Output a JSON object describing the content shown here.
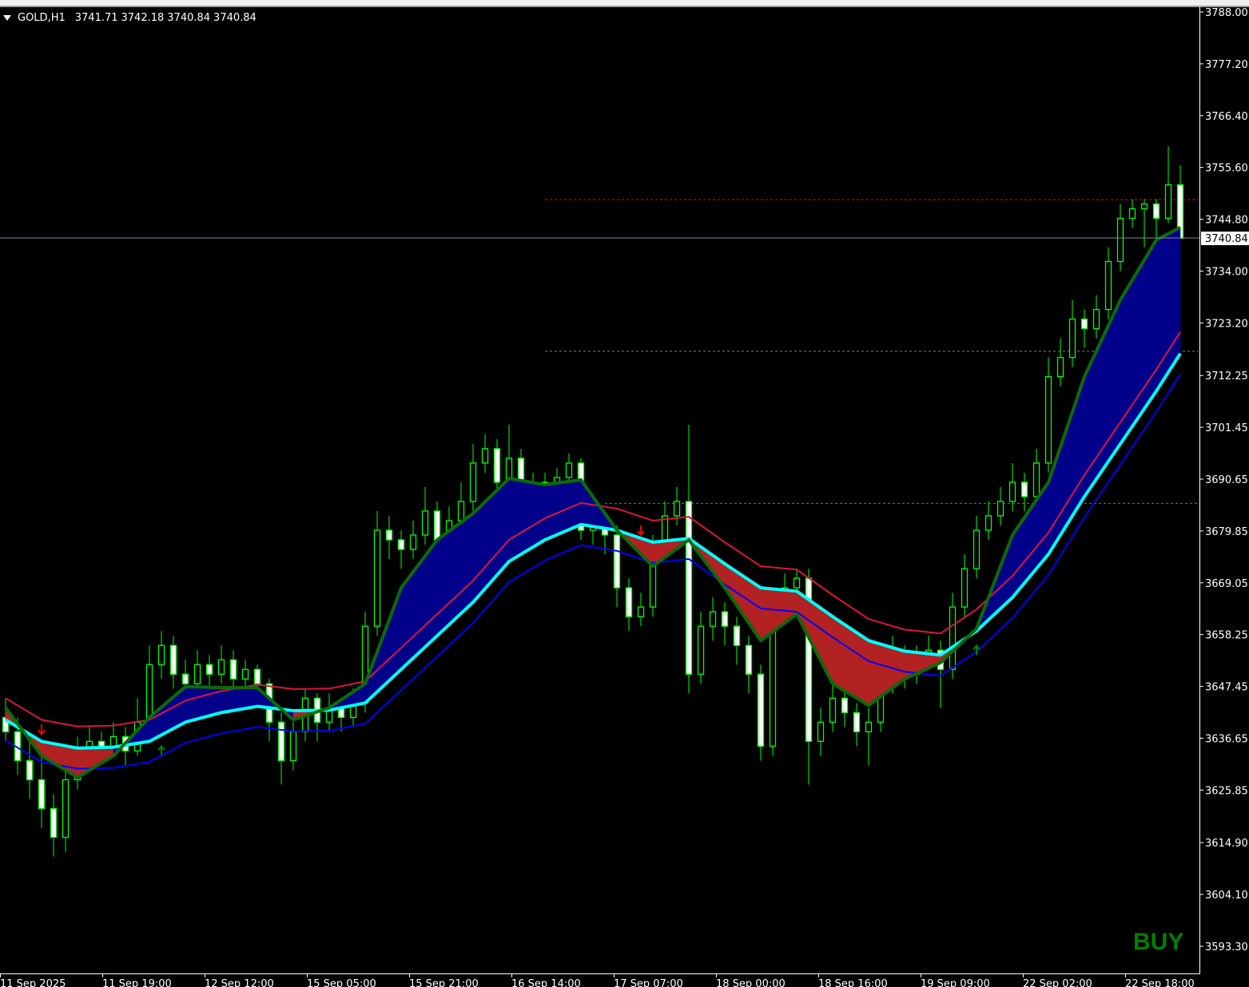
{
  "header": {
    "symbol": "GOLD,H1",
    "open": "3741.71",
    "high": "3742.18",
    "low": "3740.84",
    "close": "3740.84",
    "menu_icon": "triangle-down-icon"
  },
  "signal": {
    "label": "BUY",
    "color": "#008000"
  },
  "current_price_label": "3740.84",
  "colors": {
    "background": "#000000",
    "candle_outline": "#00ff00",
    "bull_body": "#000000",
    "bear_body": "#ffffff",
    "fast_line": "#0b6b0b",
    "mid_line": "#00ffff",
    "upper_band": "#dc143c",
    "lower_band": "#0000ff",
    "bull_fill": "#00008b",
    "bear_fill": "#b22222",
    "current_price_line": "#778899"
  },
  "chart_data": {
    "type": "candlestick",
    "title": "GOLD,H1",
    "ylim": [
      3593.3,
      3788.0
    ],
    "y_ticks": [
      "3788.00",
      "3777.20",
      "3766.40",
      "3755.60",
      "3744.80",
      "3734.00",
      "3723.20",
      "3712.25",
      "3701.45",
      "3690.65",
      "3679.85",
      "3669.05",
      "3658.25",
      "3647.45",
      "3636.65",
      "3625.85",
      "3614.90",
      "3604.10",
      "3593.30"
    ],
    "x_ticks": [
      "11 Sep 2025",
      "11 Sep 19:00",
      "12 Sep 12:00",
      "15 Sep 05:00",
      "15 Sep 21:00",
      "16 Sep 14:00",
      "17 Sep 07:00",
      "18 Sep 00:00",
      "18 Sep 16:00",
      "19 Sep 09:00",
      "22 Sep 02:00",
      "22 Sep 18:00"
    ],
    "grid": false,
    "candles_ohlc": [
      [
        3641,
        3645,
        3636,
        3638
      ],
      [
        3638,
        3641,
        3629,
        3632
      ],
      [
        3632,
        3636,
        3624,
        3628
      ],
      [
        3628,
        3633,
        3618,
        3622
      ],
      [
        3622,
        3625,
        3612,
        3616
      ],
      [
        3616,
        3631,
        3613,
        3628
      ],
      [
        3628,
        3637,
        3626,
        3634
      ],
      [
        3634,
        3639,
        3632,
        3636
      ],
      [
        3636,
        3638,
        3632,
        3635
      ],
      [
        3635,
        3640,
        3633,
        3637
      ],
      [
        3637,
        3639,
        3631,
        3634
      ],
      [
        3634,
        3645,
        3633,
        3640
      ],
      [
        3640,
        3656,
        3638,
        3652
      ],
      [
        3652,
        3659,
        3649,
        3656
      ],
      [
        3656,
        3658,
        3647,
        3650
      ],
      [
        3650,
        3653,
        3645,
        3648
      ],
      [
        3648,
        3655,
        3646,
        3652
      ],
      [
        3652,
        3654,
        3647,
        3650
      ],
      [
        3650,
        3656,
        3648,
        3653
      ],
      [
        3653,
        3655,
        3646,
        3649
      ],
      [
        3649,
        3653,
        3647,
        3651
      ],
      [
        3651,
        3652,
        3644,
        3648
      ],
      [
        3648,
        3649,
        3636,
        3640
      ],
      [
        3640,
        3642,
        3627,
        3632
      ],
      [
        3632,
        3640,
        3630,
        3638
      ],
      [
        3638,
        3647,
        3636,
        3645
      ],
      [
        3645,
        3646,
        3636,
        3640
      ],
      [
        3640,
        3646,
        3638,
        3643
      ],
      [
        3643,
        3645,
        3638,
        3641
      ],
      [
        3641,
        3647,
        3639,
        3644
      ],
      [
        3644,
        3663,
        3642,
        3660
      ],
      [
        3660,
        3684,
        3658,
        3680
      ],
      [
        3680,
        3683,
        3674,
        3678
      ],
      [
        3678,
        3680,
        3672,
        3676
      ],
      [
        3676,
        3682,
        3674,
        3679
      ],
      [
        3679,
        3689,
        3677,
        3684
      ],
      [
        3684,
        3686,
        3675,
        3678
      ],
      [
        3678,
        3685,
        3676,
        3682
      ],
      [
        3682,
        3690,
        3680,
        3686
      ],
      [
        3686,
        3698,
        3684,
        3694
      ],
      [
        3694,
        3700,
        3692,
        3697
      ],
      [
        3697,
        3699,
        3687,
        3690
      ],
      [
        3690,
        3702,
        3688,
        3695
      ],
      [
        3695,
        3697,
        3685,
        3688
      ],
      [
        3688,
        3692,
        3686,
        3690
      ],
      [
        3690,
        3692,
        3686,
        3688
      ],
      [
        3688,
        3693,
        3686,
        3691
      ],
      [
        3691,
        3696,
        3689,
        3694
      ],
      [
        3694,
        3695,
        3678,
        3680
      ],
      [
        3680,
        3683,
        3677,
        3681
      ],
      [
        3681,
        3683,
        3675,
        3679
      ],
      [
        3679,
        3681,
        3664,
        3668
      ],
      [
        3668,
        3670,
        3659,
        3662
      ],
      [
        3662,
        3667,
        3660,
        3664
      ],
      [
        3664,
        3679,
        3662,
        3676
      ],
      [
        3676,
        3686,
        3674,
        3683
      ],
      [
        3683,
        3689,
        3681,
        3686
      ],
      [
        3686,
        3702,
        3646,
        3650
      ],
      [
        3650,
        3663,
        3648,
        3660
      ],
      [
        3660,
        3666,
        3657,
        3663
      ],
      [
        3663,
        3665,
        3656,
        3660
      ],
      [
        3660,
        3662,
        3652,
        3656
      ],
      [
        3656,
        3658,
        3646,
        3650
      ],
      [
        3650,
        3652,
        3632,
        3635
      ],
      [
        3635,
        3667,
        3633,
        3664
      ],
      [
        3664,
        3671,
        3662,
        3668
      ],
      [
        3668,
        3672,
        3666,
        3670
      ],
      [
        3670,
        3672,
        3627,
        3636
      ],
      [
        3636,
        3643,
        3633,
        3640
      ],
      [
        3640,
        3648,
        3638,
        3645
      ],
      [
        3645,
        3647,
        3639,
        3642
      ],
      [
        3642,
        3644,
        3635,
        3638
      ],
      [
        3638,
        3643,
        3631,
        3640
      ],
      [
        3640,
        3651,
        3638,
        3648
      ],
      [
        3648,
        3658,
        3646,
        3654
      ],
      [
        3654,
        3656,
        3647,
        3650
      ],
      [
        3650,
        3656,
        3648,
        3653
      ],
      [
        3653,
        3658,
        3651,
        3655
      ],
      [
        3655,
        3657,
        3643,
        3651
      ],
      [
        3651,
        3667,
        3649,
        3664
      ],
      [
        3664,
        3675,
        3662,
        3672
      ],
      [
        3672,
        3683,
        3670,
        3680
      ],
      [
        3680,
        3686,
        3678,
        3683
      ],
      [
        3683,
        3689,
        3681,
        3686
      ],
      [
        3686,
        3694,
        3684,
        3690
      ],
      [
        3690,
        3692,
        3684,
        3687
      ],
      [
        3687,
        3697,
        3685,
        3694
      ],
      [
        3694,
        3716,
        3692,
        3712
      ],
      [
        3712,
        3720,
        3710,
        3716
      ],
      [
        3716,
        3728,
        3714,
        3724
      ],
      [
        3724,
        3726,
        3718,
        3722
      ],
      [
        3722,
        3729,
        3720,
        3726
      ],
      [
        3726,
        3739,
        3724,
        3736
      ],
      [
        3736,
        3748,
        3734,
        3745
      ],
      [
        3745,
        3749,
        3743,
        3747
      ],
      [
        3747,
        3749,
        3739,
        3748
      ],
      [
        3748,
        3749,
        3740,
        3745
      ],
      [
        3745,
        3760,
        3744,
        3752
      ],
      [
        3752,
        3756,
        3740.84,
        3740.84
      ]
    ],
    "line_bar_index": [
      0,
      3,
      6,
      9,
      12,
      15,
      18,
      21,
      24,
      27,
      30,
      33,
      36,
      39,
      42,
      45,
      48,
      51,
      54,
      57,
      60,
      63,
      66,
      69,
      72,
      75,
      78,
      81,
      84,
      87,
      90,
      93,
      96,
      98
    ],
    "fast_line": [
      3643,
      3633,
      3628.5,
      3633,
      3641,
      3647.4,
      3647.2,
      3647.2,
      3640.5,
      3643,
      3648,
      3668,
      3678,
      3683.5,
      3690.8,
      3689.5,
      3690.5,
      3680,
      3672.5,
      3678,
      3668,
      3657,
      3662.5,
      3648,
      3643.5,
      3649,
      3652.4,
      3659.5,
      3679,
      3690,
      3712,
      3728,
      3740.5,
      3743.1
    ],
    "mid_line": [
      3640.5,
      3636,
      3634.6,
      3634.8,
      3636,
      3640,
      3642,
      3643.3,
      3642.4,
      3642.5,
      3644,
      3651,
      3658,
      3665,
      3673.5,
      3678,
      3681.2,
      3680,
      3677.5,
      3678.3,
      3673,
      3668,
      3667.3,
      3662,
      3657,
      3654.8,
      3654,
      3659,
      3666,
      3675,
      3687,
      3698,
      3709,
      3716.8
    ],
    "upper_band": [
      3645,
      3640.5,
      3639.1,
      3639.3,
      3640.5,
      3644.5,
      3646.5,
      3647.8,
      3646.9,
      3647,
      3648.5,
      3655.5,
      3662.5,
      3669.5,
      3678,
      3682.5,
      3685.7,
      3684.5,
      3682,
      3682.8,
      3677.5,
      3672.5,
      3671.8,
      3666.5,
      3661.5,
      3659.3,
      3658.5,
      3663.5,
      3670.5,
      3679.5,
      3691.5,
      3702.5,
      3713.5,
      3721.3
    ],
    "lower_band": [
      3636.2,
      3631.7,
      3630.3,
      3630.5,
      3631.7,
      3635.7,
      3637.7,
      3639,
      3638.1,
      3638.2,
      3639.7,
      3646.7,
      3653.7,
      3660.7,
      3669.2,
      3673.7,
      3676.9,
      3675.7,
      3673.2,
      3674,
      3668.7,
      3663.7,
      3663,
      3657.7,
      3652.7,
      3650.5,
      3649.7,
      3654.7,
      3661.7,
      3670.7,
      3682.7,
      3693.7,
      3704.7,
      3712.5
    ],
    "arrows": [
      {
        "dir": "down",
        "bar": 3,
        "price": 3638.5,
        "color": "#ff0000"
      },
      {
        "dir": "up",
        "bar": 13,
        "price": 3634,
        "color": "#008000"
      },
      {
        "dir": "down",
        "bar": 53,
        "price": 3680,
        "color": "#ff0000"
      },
      {
        "dir": "up",
        "bar": 81,
        "price": 3655,
        "color": "#008000"
      }
    ],
    "levels": [
      {
        "price": 3748.9,
        "color": "#ff0000",
        "from_bar": 45
      },
      {
        "price": 3717.3,
        "color": "#808080",
        "from_bar": 45
      },
      {
        "price": 3685.6,
        "color": "#00c000",
        "from_bar": 50
      }
    ],
    "current_price": 3740.84
  }
}
